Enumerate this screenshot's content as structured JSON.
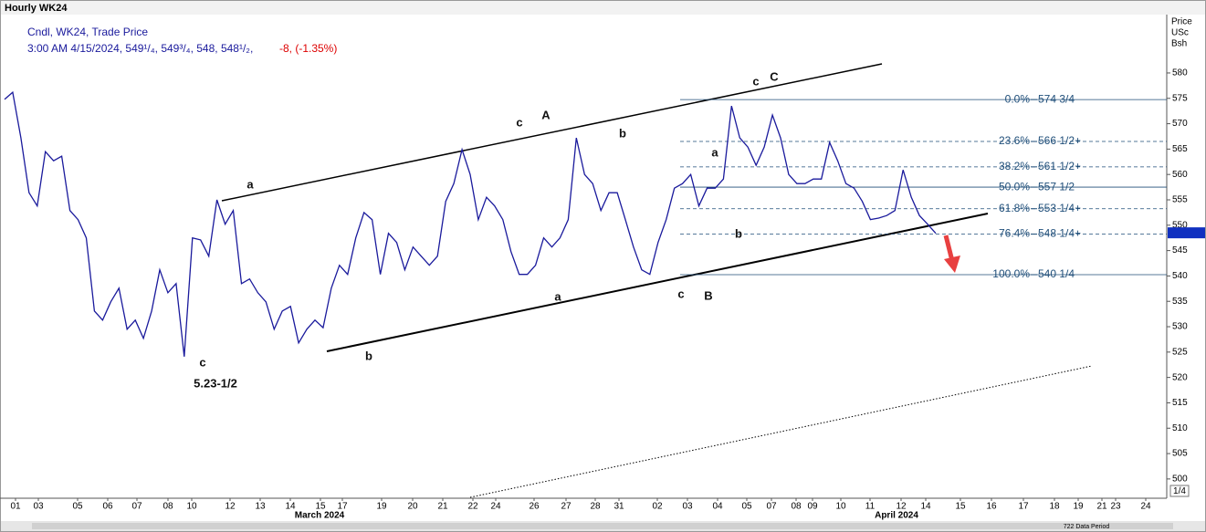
{
  "header": {
    "title": "Hourly WK24",
    "line1": "Cndl, WK24, Trade Price",
    "line2": "3:00 AM 4/15/2024, 549¹/₄, 549³/₄, 548, 548¹/₂,",
    "change": "-8, (-1.35%)"
  },
  "chart_data": {
    "type": "line",
    "color": "#1a1a9c",
    "values": [
      574.8,
      576.2,
      567.2,
      556.4,
      553.8,
      564.5,
      562.7,
      563.6,
      552.9,
      551.1,
      547.5,
      533.1,
      531.3,
      534.9,
      537.6,
      529.5,
      531.3,
      527.7,
      533.1,
      541.2,
      536.7,
      538.5,
      524.1,
      547.5,
      547.1,
      543.9,
      555.0,
      550.2,
      552.9,
      538.5,
      539.4,
      536.7,
      534.9,
      529.5,
      533.1,
      534.0,
      526.8,
      529.5,
      531.3,
      529.8,
      537.6,
      542.1,
      540.3,
      547.5,
      552.5,
      551.1,
      540.3,
      548.4,
      546.6,
      541.2,
      545.7,
      543.9,
      542.1,
      543.9,
      554.7,
      558.2,
      564.9,
      560.0,
      551.1,
      555.5,
      553.8,
      551.1,
      544.8,
      540.3,
      540.3,
      542.1,
      547.5,
      545.7,
      547.5,
      551.1,
      567.2,
      560.0,
      558.2,
      552.9,
      556.4,
      556.4,
      551.1,
      545.7,
      541.2,
      540.3,
      546.6,
      551.1,
      557.3,
      558.2,
      560.0,
      553.8,
      557.3,
      557.3,
      559.1,
      573.5,
      567.2,
      565.4,
      561.8,
      565.4,
      571.7,
      567.2,
      560.0,
      558.2,
      558.2,
      559.1,
      559.1,
      566.3,
      562.7,
      558.2,
      557.3,
      554.7,
      551.1,
      551.4,
      551.9,
      552.9,
      560.9,
      555.5,
      551.9,
      550.2,
      548.4
    ],
    "ylim": [
      496.2,
      591.5
    ],
    "yticks": [
      500,
      505,
      510,
      515,
      520,
      525,
      530,
      535,
      540,
      545,
      550,
      555,
      560,
      565,
      570,
      575,
      580
    ],
    "y_axis_label": [
      "Price",
      "USc",
      "Bsh"
    ],
    "last_price": 548.5,
    "x_labels": [
      "01",
      "03",
      "05",
      "06",
      "07",
      "08",
      "10",
      "12",
      "13",
      "14",
      "15",
      "17",
      "19",
      "20",
      "21",
      "22",
      "24",
      "26",
      "27",
      "28",
      "31",
      "02",
      "03",
      "04",
      "05",
      "07",
      "08",
      "09",
      "10",
      "11",
      "12",
      "14",
      "15",
      "16",
      "17",
      "18",
      "19",
      "21",
      "23",
      "24"
    ],
    "months": [
      "March 2024",
      "April 2024"
    ],
    "fib_levels": [
      {
        "percent": "0.0%",
        "price_label": "574 3/4",
        "value": 574.75,
        "dashed": false
      },
      {
        "percent": "23.6%",
        "price_label": "566 1/2+",
        "value": 566.5,
        "dashed": true
      },
      {
        "percent": "38.2%",
        "price_label": "561 1/2+",
        "value": 561.5,
        "dashed": true
      },
      {
        "percent": "50.0%",
        "price_label": "557 1/2",
        "value": 557.5,
        "dashed": false
      },
      {
        "percent": "61.8%",
        "price_label": "553 1/4+",
        "value": 553.25,
        "dashed": true
      },
      {
        "percent": "76.4%",
        "price_label": "548 1/4+",
        "value": 548.25,
        "dashed": true
      },
      {
        "percent": "100.0%",
        "price_label": "540 1/4",
        "value": 540.25,
        "dashed": false
      }
    ],
    "annotations": [
      "c",
      "5.23-1/2",
      "a",
      "b",
      "c",
      "A",
      "a",
      "b",
      "c",
      "B",
      "a",
      "b",
      "c",
      "C"
    ]
  },
  "page": "1/4",
  "footer": "722 Data Period"
}
